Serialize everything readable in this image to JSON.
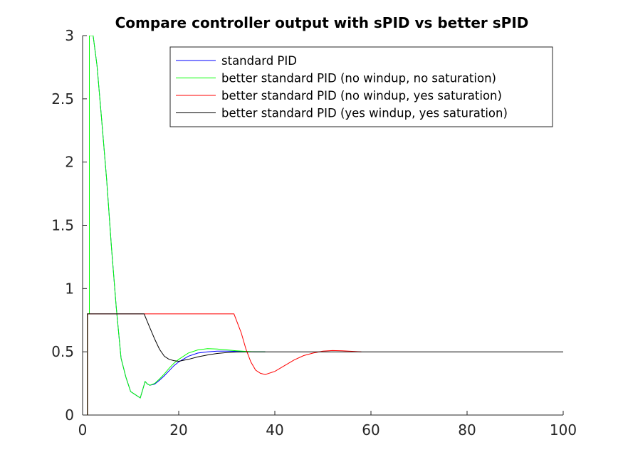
{
  "chart_data": {
    "type": "line",
    "title": "Compare controller output with sPID vs better sPID",
    "xlabel": "",
    "ylabel": "",
    "xlim": [
      0,
      100
    ],
    "ylim": [
      0,
      3
    ],
    "xticks": [
      0,
      20,
      40,
      60,
      80,
      100
    ],
    "yticks": [
      0,
      0.5,
      1,
      1.5,
      2,
      2.5,
      3
    ],
    "xtick_labels": [
      "0",
      "20",
      "40",
      "60",
      "80",
      "100"
    ],
    "ytick_labels": [
      "0",
      "0.5",
      "1",
      "1.5",
      "2",
      "2.5",
      "3"
    ],
    "grid": false,
    "legend_position": "top-right",
    "series": [
      {
        "name": "standard PID",
        "color": "#0000ff",
        "x": [
          2.2,
          3,
          4,
          5,
          6,
          7,
          8,
          9,
          10,
          11,
          12,
          12.5,
          13,
          13.5,
          14,
          15,
          16,
          17,
          18,
          19,
          20,
          22,
          24,
          26,
          28,
          30,
          32,
          34,
          36,
          38
        ],
        "y": [
          3.0,
          2.76,
          2.32,
          1.86,
          1.33,
          0.85,
          0.45,
          0.3,
          0.185,
          0.16,
          0.135,
          0.2,
          0.265,
          0.245,
          0.235,
          0.245,
          0.275,
          0.31,
          0.35,
          0.39,
          0.42,
          0.465,
          0.49,
          0.5,
          0.505,
          0.505,
          0.503,
          0.501,
          0.5,
          0.5
        ]
      },
      {
        "name": "better standard PID (no windup, no saturation)",
        "color": "#00ff00",
        "x": [
          1,
          1,
          1.4,
          1.4,
          2.2,
          3,
          4,
          5,
          6,
          7,
          8,
          9,
          10,
          11,
          12,
          12.5,
          13,
          13.5,
          14,
          15,
          16,
          17,
          18,
          19,
          20,
          22,
          24,
          26,
          28,
          30,
          32,
          34,
          36,
          38
        ],
        "y": [
          0,
          0.8,
          0.8,
          3.0,
          3.0,
          2.76,
          2.32,
          1.86,
          1.33,
          0.85,
          0.45,
          0.3,
          0.185,
          0.16,
          0.135,
          0.2,
          0.265,
          0.245,
          0.235,
          0.25,
          0.285,
          0.325,
          0.37,
          0.41,
          0.44,
          0.49,
          0.515,
          0.525,
          0.522,
          0.515,
          0.508,
          0.503,
          0.5,
          0.5
        ]
      },
      {
        "name": "better standard PID (no windup, yes saturation)",
        "color": "#ff0000",
        "x": [
          1,
          1,
          13,
          31.5,
          33,
          34,
          35,
          36,
          37,
          38,
          40,
          42,
          44,
          46,
          48,
          50,
          52,
          54,
          56,
          58
        ],
        "y": [
          0,
          0.8,
          0.8,
          0.8,
          0.65,
          0.52,
          0.42,
          0.355,
          0.33,
          0.32,
          0.345,
          0.39,
          0.435,
          0.47,
          0.49,
          0.505,
          0.51,
          0.508,
          0.504,
          0.5
        ]
      },
      {
        "name": "better standard PID (yes windup, yes saturation)",
        "color": "#000000",
        "x": [
          1,
          1,
          12.8,
          14,
          15,
          16,
          17,
          18,
          19,
          20,
          22,
          24,
          26,
          28,
          30,
          32,
          35,
          40,
          50,
          60,
          70,
          80,
          90,
          100
        ],
        "y": [
          0,
          0.8,
          0.8,
          0.69,
          0.6,
          0.52,
          0.465,
          0.44,
          0.43,
          0.425,
          0.44,
          0.46,
          0.475,
          0.487,
          0.494,
          0.498,
          0.5,
          0.5,
          0.5,
          0.5,
          0.5,
          0.5,
          0.5,
          0.5
        ]
      }
    ]
  }
}
